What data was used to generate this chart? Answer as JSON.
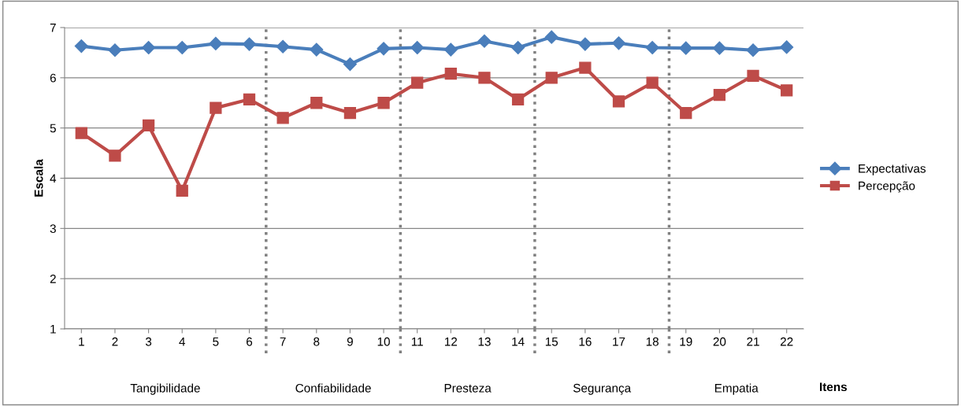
{
  "chart_data": {
    "type": "line",
    "xlabel": "Itens",
    "ylabel": "Escala",
    "x": [
      1,
      2,
      3,
      4,
      5,
      6,
      7,
      8,
      9,
      10,
      11,
      12,
      13,
      14,
      15,
      16,
      17,
      18,
      19,
      20,
      21,
      22
    ],
    "xlim": [
      0.5,
      22.5
    ],
    "xticks": [
      1,
      2,
      3,
      4,
      5,
      6,
      7,
      8,
      9,
      10,
      11,
      12,
      13,
      14,
      15,
      16,
      17,
      18,
      19,
      20,
      21,
      22
    ],
    "ylim": [
      1,
      7
    ],
    "yticks": [
      1,
      2,
      3,
      4,
      5,
      6,
      7
    ],
    "grid": "y",
    "legend": "right",
    "series": [
      {
        "name": "Expectativas",
        "color": "#4a7ebb",
        "marker": "diamond",
        "values": [
          6.63,
          6.55,
          6.6,
          6.6,
          6.68,
          6.67,
          6.62,
          6.56,
          6.27,
          6.58,
          6.6,
          6.56,
          6.73,
          6.6,
          6.81,
          6.67,
          6.69,
          6.6,
          6.59,
          6.59,
          6.55,
          6.61
        ]
      },
      {
        "name": "Percepção",
        "color": "#be4b48",
        "marker": "square",
        "values": [
          4.9,
          4.45,
          5.05,
          3.75,
          5.4,
          5.57,
          5.2,
          5.5,
          5.3,
          5.5,
          5.9,
          6.08,
          6.0,
          5.57,
          6.0,
          6.2,
          5.53,
          5.9,
          5.3,
          5.66,
          6.04,
          5.75
        ]
      }
    ],
    "ref_lines": [
      {
        "axis": "x",
        "value": 6.5,
        "color": "#808080",
        "line_style": "dotted"
      },
      {
        "axis": "x",
        "value": 10.5,
        "color": "#808080",
        "line_style": "dotted"
      },
      {
        "axis": "x",
        "value": 14.5,
        "color": "#808080",
        "line_style": "dotted"
      },
      {
        "axis": "x",
        "value": 18.5,
        "color": "#808080",
        "line_style": "dotted"
      }
    ],
    "annotations": [
      "Tangibilidade",
      "Confiabilidade",
      "Presteza",
      "Segurança",
      "Empatia"
    ]
  }
}
